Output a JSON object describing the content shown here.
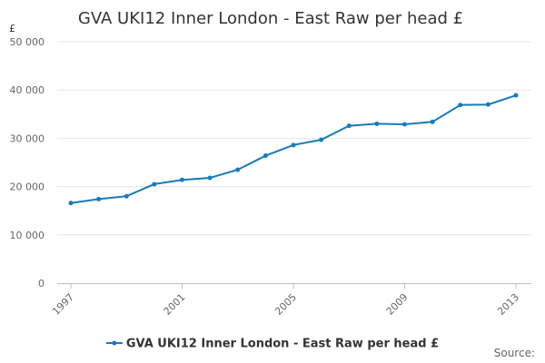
{
  "chart_data": {
    "type": "line",
    "title": "GVA UKI12 Inner London - East Raw per head £",
    "y_unit_label": "£",
    "ylim": [
      0,
      50000
    ],
    "yticks": [
      0,
      10000,
      20000,
      30000,
      40000,
      50000
    ],
    "ytick_labels": [
      "0",
      "10 000",
      "20 000",
      "30 000",
      "40 000",
      "50 000"
    ],
    "xlim": [
      1997,
      2013
    ],
    "xticks": [
      1997,
      2001,
      2005,
      2009,
      2013
    ],
    "xtick_labels": [
      "1997",
      "2001",
      "2005",
      "2009",
      "2013"
    ],
    "grid": true,
    "legend_position": "bottom",
    "series": [
      {
        "name": "GVA UKI12 Inner London - East Raw per head £",
        "color": "#1a7ab8",
        "x": [
          1997,
          1998,
          1999,
          2000,
          2001,
          2002,
          2003,
          2004,
          2005,
          2006,
          2007,
          2008,
          2009,
          2010,
          2011,
          2012,
          2013
        ],
        "values": [
          16600,
          17400,
          18000,
          20500,
          21400,
          21800,
          23500,
          26400,
          28600,
          29700,
          32600,
          33000,
          32900,
          33400,
          36900,
          37000,
          38900
        ]
      }
    ],
    "source_label": "Source:"
  }
}
